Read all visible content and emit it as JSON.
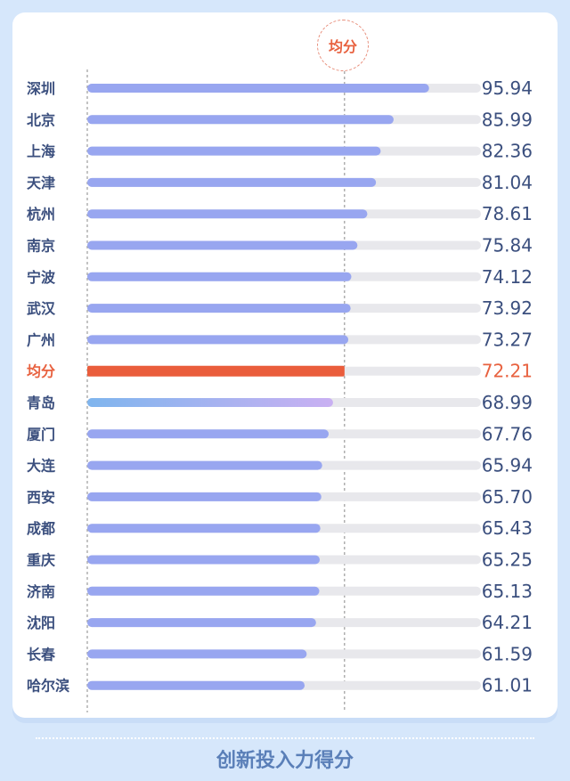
{
  "badge_label": "均分",
  "footer_title": "创新投入力得分",
  "colors": {
    "bar": "#98a6f0",
    "bar_track": "#e8e8ec",
    "average_bar": "#ea5d3c",
    "highlight_gradient_start": "#7fb5ee",
    "highlight_gradient_end": "#c9b0f2",
    "text": "#3b4f7e",
    "average_text": "#e8613f"
  },
  "chart_data": {
    "type": "bar",
    "orientation": "horizontal",
    "xlim": [
      0,
      100
    ],
    "average_value": 72.21,
    "categories": [
      "深圳",
      "北京",
      "上海",
      "天津",
      "杭州",
      "南京",
      "宁波",
      "武汉",
      "广州",
      "均分",
      "青岛",
      "厦门",
      "大连",
      "西安",
      "成都",
      "重庆",
      "济南",
      "沈阳",
      "长春",
      "哈尔滨"
    ],
    "values": [
      95.94,
      85.99,
      82.36,
      81.04,
      78.61,
      75.84,
      74.12,
      73.92,
      73.27,
      72.21,
      68.99,
      67.76,
      65.94,
      65.7,
      65.43,
      65.25,
      65.13,
      64.21,
      61.59,
      61.01
    ],
    "value_labels": [
      "95.94",
      "85.99",
      "82.36",
      "81.04",
      "78.61",
      "75.84",
      "74.12",
      "73.92",
      "73.27",
      "72.21",
      "68.99",
      "67.76",
      "65.94",
      "65.70",
      "65.43",
      "65.25",
      "65.13",
      "64.21",
      "61.59",
      "61.01"
    ],
    "highlight_category": "均分",
    "gradient_category": "青岛"
  }
}
